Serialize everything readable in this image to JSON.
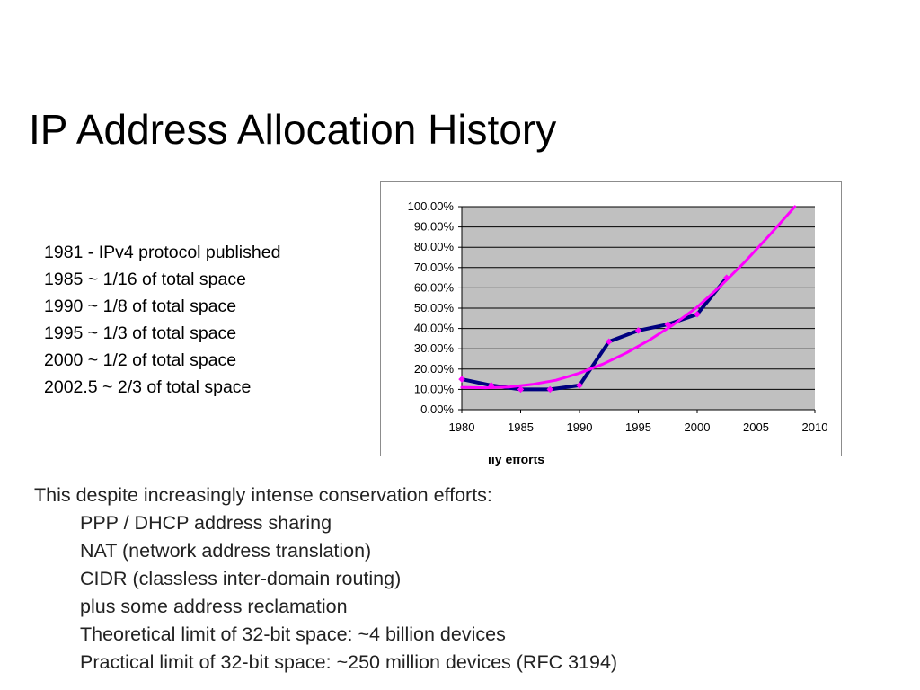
{
  "slide": {
    "title": "IP Address Allocation History",
    "timeline": [
      "1981 - IPv4 protocol published",
      "1985 ~ 1/16 of total space",
      "1990 ~ 1/8 of total space",
      "1995 ~ 1/3 of total space",
      "2000 ~ 1/2 of total space",
      "2002.5 ~ 2/3 of total space"
    ],
    "clipped_caption": "lly efforts",
    "body": {
      "intro": "This despite increasingly intense conservation efforts:",
      "points": [
        "PPP / DHCP address sharing",
        "NAT (network address translation)",
        "CIDR (classless inter-domain routing)",
        "plus some address reclamation",
        "Theoretical limit of 32-bit space: ~4 billion devices",
        "Practical limit of 32-bit space: ~250 million devices (RFC 3194)"
      ]
    }
  },
  "chart_data": {
    "type": "line",
    "title": "",
    "xlabel": "",
    "ylabel": "",
    "xlim": [
      1980,
      2010
    ],
    "ylim": [
      0,
      100
    ],
    "x_ticks": [
      "1980",
      "1985",
      "1990",
      "1995",
      "2000",
      "2005",
      "2010"
    ],
    "y_ticks": [
      "0.00%",
      "10.00%",
      "20.00%",
      "30.00%",
      "40.00%",
      "50.00%",
      "60.00%",
      "70.00%",
      "80.00%",
      "90.00%",
      "100.00%"
    ],
    "grid": true,
    "plot_background": "#c0c0c0",
    "series": [
      {
        "color": "#000080",
        "markers": true,
        "x": [
          1980,
          1982.5,
          1985,
          1987.5,
          1990,
          1992.5,
          1995,
          1997.5,
          2000,
          2002.5
        ],
        "y": [
          15,
          12,
          10,
          10,
          12,
          33.5,
          39,
          42,
          47,
          65
        ]
      },
      {
        "color": "#ff00ff",
        "markers": false,
        "x": [
          1980,
          1982,
          1984,
          1986,
          1988,
          1990,
          1992,
          1994,
          1996,
          1998,
          2000,
          2002,
          2004,
          2006,
          2008.3
        ],
        "y": [
          11,
          10.8,
          11.2,
          12.5,
          14.5,
          18,
          22.5,
          28,
          34.5,
          42,
          50.5,
          61,
          72.5,
          85,
          100
        ]
      }
    ]
  }
}
